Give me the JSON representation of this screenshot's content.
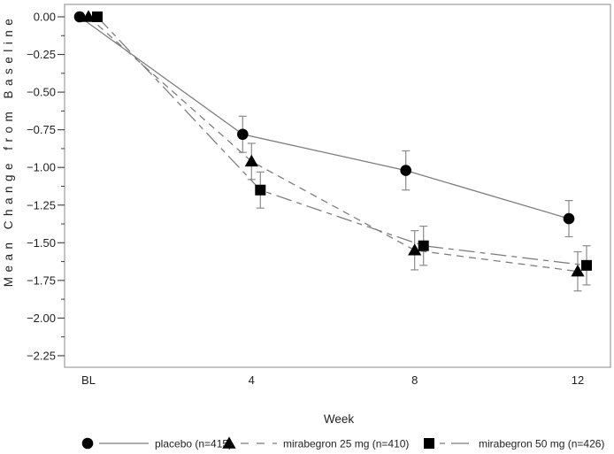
{
  "chart_data": {
    "type": "line",
    "title": "",
    "xlabel": "Week",
    "ylabel": "Mean Change from Baseline",
    "x_categories": [
      "BL",
      "4",
      "8",
      "12"
    ],
    "y_ticks": [
      "0.00",
      "−0.25",
      "−0.50",
      "−0.75",
      "−1.00",
      "−1.25",
      "−1.50",
      "−1.75",
      "−2.00",
      "−2.25"
    ],
    "y_major_step": 0.25,
    "y_minor_step": 0.125,
    "ylim": [
      -2.33,
      0.08
    ],
    "grid": false,
    "legend_position": "bottom",
    "series": [
      {
        "name": "placebo (n=415)",
        "marker": "circle",
        "line_style": "solid",
        "values": [
          0.0,
          -0.78,
          -1.02,
          -1.34
        ],
        "stderr": [
          0,
          0.12,
          0.13,
          0.12
        ]
      },
      {
        "name": "mirabegron 25 mg (n=410)",
        "marker": "triangle",
        "line_style": "dashed",
        "values": [
          0.0,
          -0.96,
          -1.55,
          -1.69
        ],
        "stderr": [
          0,
          0.12,
          0.13,
          0.13
        ]
      },
      {
        "name": "mirabegron 50 mg (n=426)",
        "marker": "square",
        "line_style": "dash-dot",
        "values": [
          0.0,
          -1.15,
          -1.52,
          -1.65
        ],
        "stderr": [
          0,
          0.12,
          0.13,
          0.13
        ]
      }
    ],
    "colors": {
      "marker": "#000000",
      "line": "#7a7a7a",
      "error_bar": "#8a8a8a",
      "frame": "#9c9c9c",
      "tick": "#3c3c3c",
      "text": "#1f1f1f",
      "background": "#ffffff"
    }
  }
}
